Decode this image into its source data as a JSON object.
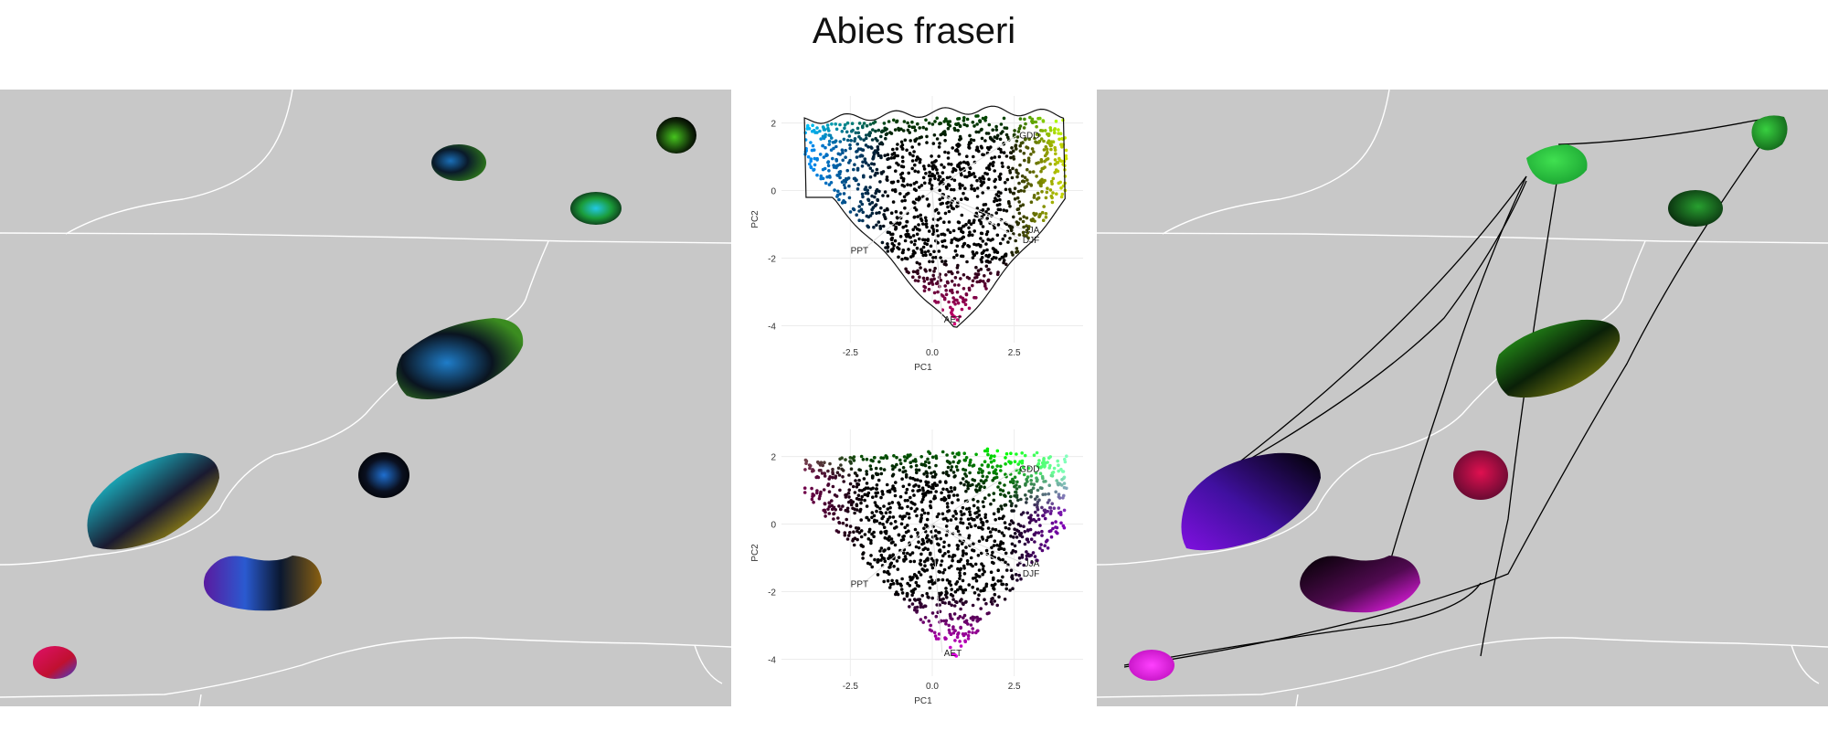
{
  "title": "Abies fraseri",
  "colors": {
    "map_background": "#c8c8c8",
    "state_border": "#ffffff",
    "hull_line": "#000000"
  },
  "biplot": {
    "xlabel": "PC1",
    "ylabel": "PC2",
    "xticks": [
      "-2.5",
      "0.0",
      "2.5"
    ],
    "yticks": [
      "2",
      "0",
      "-2",
      "-4"
    ],
    "xlim": [
      -4.6,
      4.6
    ],
    "ylim": [
      -4.5,
      2.8
    ],
    "vectors": [
      {
        "label": "GDD",
        "x": 2.6,
        "y": 1.65
      },
      {
        "label": "JJA",
        "x": 2.75,
        "y": -1.15
      },
      {
        "label": "DJF",
        "x": 2.7,
        "y": -1.45
      },
      {
        "label": "PPT",
        "x": -2.1,
        "y": -1.75
      },
      {
        "label": "AET",
        "x": 0.3,
        "y": -3.8
      }
    ]
  },
  "chart_data": [
    {
      "type": "scatter",
      "title": "",
      "xlabel": "PC1",
      "ylabel": "PC2",
      "xlim": [
        -4.6,
        4.6
      ],
      "ylim": [
        -4.5,
        2.8
      ],
      "color_scheme": "rgb-by-position",
      "hull": true
    },
    {
      "type": "scatter",
      "title": "",
      "xlabel": "PC1",
      "ylabel": "PC2",
      "xlim": [
        -4.6,
        4.6
      ],
      "ylim": [
        -4.5,
        2.8
      ],
      "color_scheme": "rgb-by-position",
      "hull": false
    }
  ]
}
